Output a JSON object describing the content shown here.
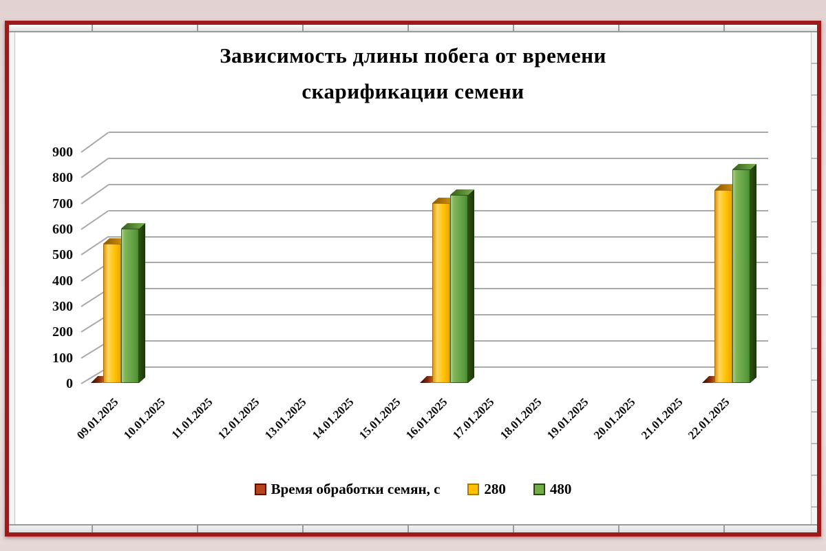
{
  "chart": {
    "title_lines": [
      "Зависимость длины побега от времени",
      "скарификации семени"
    ]
  },
  "chart_data": {
    "type": "bar",
    "style": "3d-clustered-column",
    "title": "Зависимость длины побега от времени скарификации семени",
    "categories": [
      "09.01.2025",
      "10.01.2025",
      "11.01.2025",
      "12.01.2025",
      "13.01.2025",
      "14.01.2025",
      "15.01.2025",
      "16.01.2025",
      "17.01.2025",
      "18.01.2025",
      "19.01.2025",
      "20.01.2025",
      "21.01.2025",
      "22.01.2025"
    ],
    "series": [
      {
        "name": "Время обработки семян, с",
        "color": "#b5441a",
        "values": [
          0,
          null,
          null,
          null,
          null,
          null,
          null,
          0,
          null,
          null,
          null,
          null,
          null,
          0
        ]
      },
      {
        "name": "280",
        "color": "#ffc000",
        "values": [
          540,
          null,
          null,
          null,
          null,
          null,
          null,
          700,
          null,
          null,
          null,
          null,
          null,
          750
        ]
      },
      {
        "name": "480",
        "color": "#70ad47",
        "values": [
          600,
          null,
          null,
          null,
          null,
          null,
          null,
          730,
          null,
          null,
          null,
          null,
          null,
          830
        ]
      }
    ],
    "xlabel": "",
    "ylabel": "",
    "ylim": [
      0,
      900
    ],
    "ytick_step": 100,
    "grid": true,
    "legend_position": "bottom"
  },
  "colors": {
    "frame_red": "#9c1a1a",
    "margin_pink": "#e6d8d8",
    "chart_background": "#ffffff",
    "gridline": "#a9a9a9",
    "text": "#000000"
  }
}
